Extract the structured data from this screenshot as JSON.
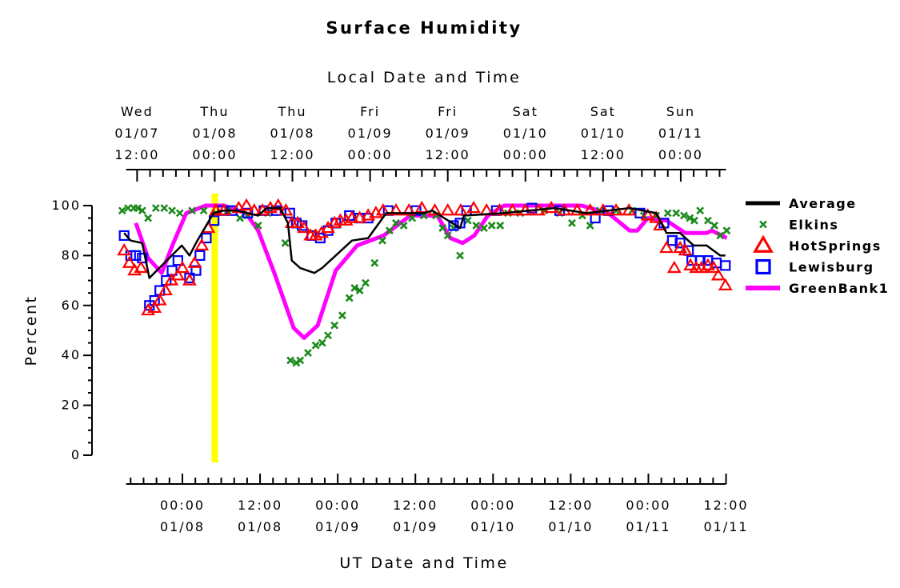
{
  "chart_data": {
    "type": "line",
    "title": "Surface Humidity",
    "top_axis_label": "Local Date and Time",
    "xlabel": "UT Date and Time",
    "ylabel": "Percent",
    "x_units": "hours since 01/08 00:00 UT",
    "xlim": [
      -8.7,
      84
    ],
    "ylim": [
      0,
      100
    ],
    "yticks": [
      0,
      20,
      40,
      60,
      80,
      100
    ],
    "bottom_ticks": [
      {
        "h": 0,
        "l1": "00:00",
        "l2": "01/08"
      },
      {
        "h": 12,
        "l1": "12:00",
        "l2": "01/08"
      },
      {
        "h": 24,
        "l1": "00:00",
        "l2": "01/09"
      },
      {
        "h": 36,
        "l1": "12:00",
        "l2": "01/09"
      },
      {
        "h": 48,
        "l1": "00:00",
        "l2": "01/10"
      },
      {
        "h": 60,
        "l1": "12:00",
        "l2": "01/10"
      },
      {
        "h": 72,
        "l1": "00:00",
        "l2": "01/11"
      },
      {
        "h": 84,
        "l1": "12:00",
        "l2": "01/11"
      }
    ],
    "top_ticks": [
      {
        "h": -7,
        "l0": "Wed",
        "l1": "01/07",
        "l2": "12:00"
      },
      {
        "h": 5,
        "l0": "Thu",
        "l1": "01/08",
        "l2": "00:00"
      },
      {
        "h": 17,
        "l0": "Thu",
        "l1": "01/08",
        "l2": "12:00"
      },
      {
        "h": 29,
        "l0": "Fri",
        "l1": "01/09",
        "l2": "00:00"
      },
      {
        "h": 41,
        "l0": "Fri",
        "l1": "01/09",
        "l2": "12:00"
      },
      {
        "h": 53,
        "l0": "Sat",
        "l1": "01/10",
        "l2": "00:00"
      },
      {
        "h": 65,
        "l0": "Sat",
        "l1": "01/10",
        "l2": "12:00"
      },
      {
        "h": 77,
        "l0": "Sun",
        "l1": "01/11",
        "l2": "00:00"
      }
    ],
    "marker_line": {
      "h": 5,
      "color": "#ffff00"
    },
    "legend_position": "right",
    "series": [
      {
        "name": "Average",
        "style": "line",
        "color": "#000000",
        "x": [
          -9.0,
          -8.0,
          -6.2,
          -5.1,
          -0.1,
          1.1,
          2.1,
          4.8,
          6.4,
          8.5,
          11.7,
          13.0,
          15.1,
          16.3,
          16.9,
          18.2,
          20.4,
          21.6,
          24.1,
          26.2,
          28.7,
          31.5,
          37.3,
          38.6,
          42.9,
          43.5,
          49.7,
          57.5,
          62.4,
          69.1,
          73.2,
          74.8,
          76.9,
          79.0,
          81.0,
          83.1,
          83.9
        ],
        "y": [
          89,
          86,
          85,
          71,
          84,
          80,
          85,
          97,
          98,
          98,
          96,
          99,
          99,
          93,
          78,
          75,
          73,
          75,
          81,
          86,
          87,
          97,
          97,
          98,
          91,
          96,
          97,
          99,
          97,
          99,
          97,
          89,
          89,
          84,
          84,
          80,
          80
        ]
      },
      {
        "name": "Elkins",
        "style": "x",
        "color": "#1a8a1a",
        "x": [
          -9.3,
          -8.4,
          -7.5,
          -6.9,
          -6.2,
          -5.3,
          -4.1,
          -2.8,
          -1.6,
          -0.4,
          1.5,
          3.3,
          5.2,
          7.0,
          8.9,
          10.1,
          11.7,
          13.2,
          15.9,
          16.7,
          17.6,
          18.2,
          19.4,
          20.6,
          21.6,
          22.5,
          23.5,
          24.7,
          25.8,
          26.6,
          27.4,
          28.3,
          29.7,
          30.9,
          32.0,
          33.0,
          34.2,
          35.5,
          37.3,
          39.2,
          40.2,
          41.0,
          41.9,
          42.9,
          44.1,
          45.4,
          46.6,
          47.8,
          49.1,
          50.3,
          52.2,
          55.9,
          58.3,
          60.2,
          61.8,
          63.0,
          64.5,
          67.0,
          69.5,
          71.3,
          73.2,
          75.0,
          76.3,
          77.5,
          78.4,
          79.1,
          80.0,
          81.2,
          82.2,
          83.1,
          84.1
        ],
        "y": [
          98,
          99,
          99,
          99,
          98,
          95,
          99,
          99,
          98,
          97,
          98,
          98,
          97,
          98,
          95,
          96,
          92,
          97,
          85,
          38,
          37,
          38,
          41,
          44,
          45,
          48,
          52,
          56,
          63,
          67,
          66,
          69,
          77,
          86,
          90,
          93,
          92,
          95,
          96,
          96,
          91,
          88,
          91,
          80,
          94,
          92,
          91,
          92,
          92,
          97,
          97,
          98,
          97,
          93,
          96,
          92,
          98,
          98,
          98,
          96,
          96,
          97,
          97,
          96,
          95,
          94,
          98,
          94,
          92,
          88,
          90
        ]
      },
      {
        "name": "HotSprings",
        "style": "triangle",
        "color": "#ff0000",
        "x": [
          -9.0,
          -8.2,
          -7.4,
          -6.4,
          -5.3,
          -4.3,
          -3.5,
          -2.6,
          -1.7,
          -0.7,
          0.0,
          1.1,
          1.9,
          3.0,
          4.0,
          5.2,
          6.4,
          8.7,
          9.9,
          11.1,
          12.4,
          13.6,
          14.8,
          16.0,
          16.9,
          17.8,
          18.8,
          19.8,
          20.6,
          21.5,
          22.5,
          23.5,
          24.4,
          25.3,
          26.2,
          27.4,
          28.7,
          29.9,
          31,
          33,
          35,
          37,
          39,
          41,
          43,
          45,
          47,
          49,
          51,
          53,
          55,
          57,
          59,
          61,
          63,
          65,
          67,
          69,
          71.9,
          73.2,
          73.8,
          74.8,
          76.0,
          76.9,
          77.7,
          78.5,
          79.4,
          80.2,
          81.2,
          82.1,
          82.8,
          83.9
        ],
        "y": [
          82,
          77,
          74,
          75,
          58,
          59,
          62,
          66,
          70,
          72,
          75,
          70,
          77,
          84,
          91,
          98,
          98,
          99,
          100,
          98,
          98,
          99,
          100,
          98,
          93,
          93,
          91,
          88,
          88,
          89,
          91,
          93,
          94,
          94,
          95,
          95,
          96,
          97,
          98,
          98,
          98,
          99,
          98,
          98,
          98,
          99,
          98,
          98,
          98,
          98,
          98,
          99,
          98,
          98,
          98,
          98,
          98,
          98,
          96,
          95,
          92,
          83,
          75,
          83,
          82,
          76,
          75,
          75,
          76,
          75,
          72,
          68
        ]
      },
      {
        "name": "Lewisburg",
        "style": "square",
        "color": "#0000ff",
        "x": [
          -9.0,
          -8.0,
          -7.2,
          -6.2,
          -5.1,
          -4.3,
          -3.5,
          -2.5,
          -1.6,
          -0.7,
          1.1,
          2.1,
          2.7,
          3.7,
          4.9,
          6.2,
          7.7,
          10.1,
          12.6,
          14.5,
          16.6,
          17.6,
          18.5,
          20.0,
          21.3,
          22.5,
          23.7,
          25.8,
          27.4,
          28.7,
          31.8,
          36.1,
          41.9,
          42.9,
          43.9,
          48.5,
          54.0,
          58.3,
          63.8,
          65.8,
          70.7,
          74.4,
          75.7,
          76.9,
          78.2,
          78.7,
          80.0,
          81.2,
          82.5,
          83.9
        ],
        "y": [
          88,
          80,
          80,
          79,
          60,
          62,
          66,
          70,
          74,
          78,
          71,
          74,
          80,
          87,
          94,
          98,
          98,
          97,
          98,
          98,
          97,
          93,
          92,
          88,
          87,
          90,
          93,
          96,
          95,
          95,
          98,
          98,
          92,
          93,
          98,
          98,
          99,
          98,
          95,
          98,
          97,
          93,
          86,
          85,
          82,
          78,
          78,
          78,
          77,
          76
        ]
      },
      {
        "name": "GreenBank1",
        "style": "thickline",
        "color": "#ff00ff",
        "x": [
          -7.2,
          -5.3,
          -3.2,
          -1.4,
          0.6,
          3.6,
          6.4,
          9.8,
          11.7,
          14.2,
          17.2,
          18.8,
          20.9,
          23.7,
          27.0,
          31.1,
          35.2,
          39.4,
          41.4,
          43.3,
          45.1,
          47.2,
          49.7,
          61.7,
          65.8,
          69.1,
          70.3,
          71.9,
          74.8,
          77.7,
          81.0,
          81.8,
          84.1
        ],
        "y": [
          93,
          79,
          73,
          85,
          97,
          100,
          100,
          97,
          90,
          73,
          51,
          47,
          52,
          74,
          84,
          88,
          96,
          96,
          87,
          85,
          88,
          96,
          100,
          100,
          97,
          90,
          90,
          95,
          94,
          89,
          89,
          90,
          87
        ]
      }
    ]
  }
}
